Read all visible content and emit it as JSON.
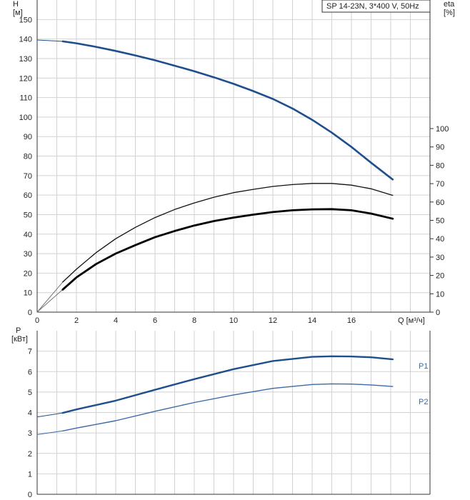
{
  "chart_data": [
    {
      "type": "line",
      "legend_box": "SP 14-23N, 3*400 V, 50Hz",
      "ylabel": "H",
      "yunit": "[м]",
      "y2label": "eta",
      "y2unit": "[%]",
      "xlabel": "Q [м³/ч]",
      "xlim": [
        0,
        20
      ],
      "ylim": [
        0,
        160
      ],
      "y2lim": [
        0,
        100
      ],
      "xticks": [
        0,
        2,
        4,
        6,
        8,
        10,
        12,
        14,
        16
      ],
      "yticks": [
        0,
        10,
        20,
        30,
        40,
        50,
        60,
        70,
        80,
        90,
        100,
        110,
        120,
        130,
        140,
        150
      ],
      "y2ticks": [
        0,
        10,
        20,
        30,
        40,
        50,
        60,
        70,
        80,
        90,
        100
      ],
      "grid": true,
      "series": [
        {
          "axis": "H",
          "color": "#1e4f8c",
          "x": [
            0,
            1.3,
            2,
            3,
            4,
            5,
            6,
            7,
            8,
            9,
            10,
            11,
            12,
            13,
            14,
            15,
            16,
            17,
            18.1
          ],
          "values": [
            139.5,
            138.8,
            137.8,
            136,
            133.9,
            131.6,
            129.1,
            126.3,
            123.5,
            120.4,
            117,
            113.3,
            109.3,
            104.4,
            98.6,
            92,
            84.7,
            76.6,
            68
          ]
        },
        {
          "axis": "eta",
          "color": "#111111",
          "x": [
            0,
            1.3,
            2,
            3,
            4,
            5,
            6,
            7,
            8,
            9,
            10,
            11,
            12,
            13,
            14,
            15,
            16,
            17,
            18.1
          ],
          "values": [
            0,
            16.4,
            23.4,
            32.4,
            40,
            46.2,
            51.5,
            55.9,
            59.5,
            62.6,
            65.1,
            66.9,
            68.5,
            69.5,
            70.1,
            70.1,
            69.2,
            67.2,
            63.6
          ]
        },
        {
          "axis": "eta",
          "color": "#000000",
          "x": [
            1.3,
            2,
            3,
            4,
            5,
            6,
            7,
            8,
            9,
            10,
            11,
            12,
            13,
            14,
            15,
            16,
            17,
            18.1
          ],
          "values": [
            12.3,
            18.9,
            26.2,
            31.9,
            36.5,
            40.8,
            44.2,
            47.2,
            49.6,
            51.5,
            53.1,
            54.5,
            55.5,
            56,
            56.1,
            55.5,
            53.7,
            50.9
          ]
        }
      ]
    },
    {
      "type": "line",
      "ylabel": "P",
      "yunit": "[кВт]",
      "xlim": [
        0,
        20
      ],
      "ylim": [
        0,
        8
      ],
      "yticks": [
        0,
        1,
        2,
        3,
        4,
        5,
        6,
        7
      ],
      "grid": true,
      "series": [
        {
          "name": "P1",
          "color": "#1e4f8c",
          "x": [
            0,
            1.3,
            2,
            4,
            6,
            8,
            10,
            12,
            14,
            15,
            16,
            17,
            18.1
          ],
          "values": [
            3.78,
            3.98,
            4.15,
            4.58,
            5.11,
            5.63,
            6.12,
            6.52,
            6.72,
            6.75,
            6.74,
            6.7,
            6.6
          ]
        },
        {
          "name": "P2",
          "color": "#3a6aa8",
          "x": [
            0,
            1.3,
            2,
            4,
            6,
            8,
            10,
            12,
            14,
            15,
            16,
            17,
            18.1
          ],
          "values": [
            2.92,
            3.1,
            3.24,
            3.6,
            4.06,
            4.49,
            4.86,
            5.18,
            5.37,
            5.4,
            5.39,
            5.35,
            5.27
          ]
        }
      ]
    }
  ]
}
